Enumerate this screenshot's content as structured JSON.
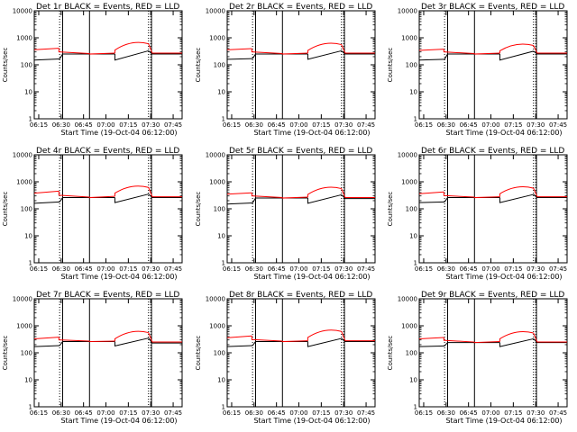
{
  "figure": {
    "series_colors": {
      "events": "#000000",
      "lld": "#ff0000"
    }
  },
  "chart_data": [
    {
      "type": "line",
      "title": "Det 1r  BLACK = Events, RED = LLD",
      "xlabel": "Start Time (19-Oct-04 06:12:00)",
      "ylabel": "Counts/sec",
      "yscale": "log",
      "ylim": [
        1,
        10000
      ],
      "xlim": [
        "06:12",
        "07:51"
      ],
      "x_ticks": [
        "06:15",
        "06:30",
        "06:45",
        "07:00",
        "07:15",
        "07:30",
        "07:45"
      ],
      "y_ticks": [
        "1",
        "10",
        "100",
        "1000",
        "10000"
      ],
      "solid_vlines": [
        "06:31",
        "06:49",
        "07:30:30"
      ],
      "dotted_vlines": [
        "06:29",
        "07:28:30",
        "07:30"
      ],
      "events": {
        "segments": [
          {
            "t0": "06:12",
            "t1": "06:29",
            "start": 150,
            "end": 165
          },
          {
            "t0": "06:31",
            "t1": "06:49",
            "start": 250,
            "end": 250
          },
          {
            "t0": "06:49",
            "t1": "07:06",
            "start": 250,
            "end": 250
          },
          {
            "t0": "07:06",
            "t1": "07:28:30",
            "start": 150,
            "end": 330
          },
          {
            "t0": "07:31",
            "t1": "07:51",
            "start": 250,
            "end": 250
          }
        ]
      },
      "lld": {
        "segments": [
          {
            "t0": "06:12",
            "t1": "06:28:30",
            "start": 360,
            "end": 410
          },
          {
            "t0": "06:28:30",
            "t1": "06:49",
            "start": 300,
            "end": 260
          },
          {
            "t0": "06:49",
            "t1": "07:06",
            "start": 250,
            "end": 270
          },
          {
            "t0": "07:06",
            "t1": "07:28:30",
            "start": 350,
            "end": 600,
            "peak": "07:17"
          },
          {
            "t0": "07:31",
            "t1": "07:51",
            "start": 270,
            "end": 270
          }
        ]
      }
    },
    {
      "type": "line",
      "title": "Det 2r  BLACK = Events, RED = LLD",
      "xlabel": "Start Time (19-Oct-04 06:12:00)",
      "ylabel": "Counts/sec",
      "yscale": "log",
      "ylim": [
        1,
        10000
      ],
      "xlim": [
        "06:12",
        "07:51"
      ],
      "x_ticks": [
        "06:15",
        "06:30",
        "06:45",
        "07:00",
        "07:15",
        "07:30",
        "07:45"
      ],
      "y_ticks": [
        "1",
        "10",
        "100",
        "1000",
        "10000"
      ],
      "solid_vlines": [
        "06:31",
        "06:49",
        "07:30:30"
      ],
      "dotted_vlines": [
        "06:29",
        "07:28:30",
        "07:30"
      ],
      "events": {
        "segments": [
          {
            "t0": "06:12",
            "t1": "06:29",
            "start": 160,
            "end": 170
          },
          {
            "t0": "06:31",
            "t1": "06:49",
            "start": 250,
            "end": 250
          },
          {
            "t0": "06:49",
            "t1": "07:06",
            "start": 250,
            "end": 250
          },
          {
            "t0": "07:06",
            "t1": "07:28:30",
            "start": 160,
            "end": 330
          },
          {
            "t0": "07:31",
            "t1": "07:51",
            "start": 250,
            "end": 250
          }
        ]
      },
      "lld": {
        "segments": [
          {
            "t0": "06:12",
            "t1": "06:28:30",
            "start": 360,
            "end": 400
          },
          {
            "t0": "06:28:30",
            "t1": "06:49",
            "start": 300,
            "end": 260
          },
          {
            "t0": "06:49",
            "t1": "07:06",
            "start": 250,
            "end": 270
          },
          {
            "t0": "07:06",
            "t1": "07:28:30",
            "start": 340,
            "end": 560,
            "peak": "07:17"
          },
          {
            "t0": "07:31",
            "t1": "07:51",
            "start": 270,
            "end": 270
          }
        ]
      }
    },
    {
      "type": "line",
      "title": "Det 3r  BLACK = Events, RED = LLD",
      "xlabel": "Start Time (19-Oct-04 06:12:00)",
      "ylabel": "Counts/sec",
      "yscale": "log",
      "ylim": [
        1,
        10000
      ],
      "xlim": [
        "06:12",
        "07:51"
      ],
      "x_ticks": [
        "06:15",
        "06:30",
        "06:45",
        "07:00",
        "07:15",
        "07:30",
        "07:45"
      ],
      "y_ticks": [
        "1",
        "10",
        "100",
        "1000",
        "10000"
      ],
      "solid_vlines": [
        "06:31",
        "06:49",
        "07:30:30"
      ],
      "dotted_vlines": [
        "06:29",
        "07:28:30",
        "07:30"
      ],
      "events": {
        "segments": [
          {
            "t0": "06:12",
            "t1": "06:29",
            "start": 150,
            "end": 160
          },
          {
            "t0": "06:31",
            "t1": "06:49",
            "start": 250,
            "end": 250
          },
          {
            "t0": "06:49",
            "t1": "07:06",
            "start": 250,
            "end": 250
          },
          {
            "t0": "07:06",
            "t1": "07:28:30",
            "start": 150,
            "end": 320
          },
          {
            "t0": "07:31",
            "t1": "07:51",
            "start": 250,
            "end": 250
          }
        ]
      },
      "lld": {
        "segments": [
          {
            "t0": "06:12",
            "t1": "06:28:30",
            "start": 340,
            "end": 380
          },
          {
            "t0": "06:28:30",
            "t1": "06:49",
            "start": 300,
            "end": 260
          },
          {
            "t0": "06:49",
            "t1": "07:06",
            "start": 250,
            "end": 270
          },
          {
            "t0": "07:06",
            "t1": "07:28:30",
            "start": 330,
            "end": 520,
            "peak": "07:17"
          },
          {
            "t0": "07:31",
            "t1": "07:51",
            "start": 270,
            "end": 270
          }
        ]
      }
    },
    {
      "type": "line",
      "title": "Det 4r  BLACK = Events, RED = LLD",
      "xlabel": "Start Time (19-Oct-04 06:12:00)",
      "ylabel": "Counts/sec",
      "yscale": "log",
      "ylim": [
        1,
        10000
      ],
      "xlim": [
        "06:12",
        "07:51"
      ],
      "x_ticks": [
        "06:15",
        "06:30",
        "06:45",
        "07:00",
        "07:15",
        "07:30",
        "07:45"
      ],
      "y_ticks": [
        "1",
        "10",
        "100",
        "1000",
        "10000"
      ],
      "solid_vlines": [
        "06:31",
        "06:49",
        "07:30:30"
      ],
      "dotted_vlines": [
        "06:29",
        "07:28:30",
        "07:30"
      ],
      "events": {
        "segments": [
          {
            "t0": "06:12",
            "t1": "06:29",
            "start": 160,
            "end": 180
          },
          {
            "t0": "06:31",
            "t1": "06:49",
            "start": 260,
            "end": 260
          },
          {
            "t0": "06:49",
            "t1": "07:06",
            "start": 260,
            "end": 260
          },
          {
            "t0": "07:06",
            "t1": "07:28:30",
            "start": 170,
            "end": 350
          },
          {
            "t0": "07:31",
            "t1": "07:51",
            "start": 260,
            "end": 260
          }
        ]
      },
      "lld": {
        "segments": [
          {
            "t0": "06:12",
            "t1": "06:28:30",
            "start": 380,
            "end": 450
          },
          {
            "t0": "06:28:30",
            "t1": "06:49",
            "start": 320,
            "end": 270
          },
          {
            "t0": "06:49",
            "t1": "07:06",
            "start": 260,
            "end": 290
          },
          {
            "t0": "07:06",
            "t1": "07:28:30",
            "start": 380,
            "end": 620,
            "peak": "07:17"
          },
          {
            "t0": "07:31",
            "t1": "07:51",
            "start": 280,
            "end": 280
          }
        ]
      }
    },
    {
      "type": "line",
      "title": "Det 5r  BLACK = Events, RED = LLD",
      "xlabel": "Start Time (19-Oct-04 06:12:00)",
      "ylabel": "Counts/sec",
      "yscale": "log",
      "ylim": [
        1,
        10000
      ],
      "xlim": [
        "06:12",
        "07:51"
      ],
      "x_ticks": [
        "06:15",
        "06:30",
        "06:45",
        "07:00",
        "07:15",
        "07:30",
        "07:45"
      ],
      "y_ticks": [
        "1",
        "10",
        "100",
        "1000",
        "10000"
      ],
      "solid_vlines": [
        "06:31",
        "06:49",
        "07:30:30"
      ],
      "dotted_vlines": [
        "06:29",
        "07:28:30",
        "07:30"
      ],
      "events": {
        "segments": [
          {
            "t0": "06:12",
            "t1": "06:29",
            "start": 150,
            "end": 165
          },
          {
            "t0": "06:31",
            "t1": "06:49",
            "start": 250,
            "end": 250
          },
          {
            "t0": "06:49",
            "t1": "07:06",
            "start": 250,
            "end": 250
          },
          {
            "t0": "07:06",
            "t1": "07:28:30",
            "start": 160,
            "end": 330
          },
          {
            "t0": "07:31",
            "t1": "07:51",
            "start": 240,
            "end": 240
          }
        ]
      },
      "lld": {
        "segments": [
          {
            "t0": "06:12",
            "t1": "06:28:30",
            "start": 350,
            "end": 390
          },
          {
            "t0": "06:28:30",
            "t1": "06:49",
            "start": 300,
            "end": 260
          },
          {
            "t0": "06:49",
            "t1": "07:06",
            "start": 250,
            "end": 270
          },
          {
            "t0": "07:06",
            "t1": "07:28:30",
            "start": 340,
            "end": 560,
            "peak": "07:17"
          },
          {
            "t0": "07:31",
            "t1": "07:51",
            "start": 260,
            "end": 260
          }
        ]
      }
    },
    {
      "type": "line",
      "title": "Det 6r  BLACK = Events, RED = LLD",
      "xlabel": "Start Time (19-Oct-04 06:12:00)",
      "ylabel": "Counts/sec",
      "yscale": "log",
      "ylim": [
        1,
        10000
      ],
      "xlim": [
        "06:12",
        "07:51"
      ],
      "x_ticks": [
        "06:15",
        "06:30",
        "06:45",
        "07:00",
        "07:15",
        "07:30",
        "07:45"
      ],
      "y_ticks": [
        "1",
        "10",
        "100",
        "1000",
        "10000"
      ],
      "solid_vlines": [
        "06:31",
        "06:49",
        "07:30:30"
      ],
      "dotted_vlines": [
        "06:29",
        "07:28:30",
        "07:30"
      ],
      "events": {
        "segments": [
          {
            "t0": "06:12",
            "t1": "06:29",
            "start": 170,
            "end": 180
          },
          {
            "t0": "06:31",
            "t1": "06:49",
            "start": 260,
            "end": 260
          },
          {
            "t0": "06:49",
            "t1": "07:06",
            "start": 260,
            "end": 260
          },
          {
            "t0": "07:06",
            "t1": "07:28:30",
            "start": 170,
            "end": 340
          },
          {
            "t0": "07:31",
            "t1": "07:51",
            "start": 260,
            "end": 260
          }
        ]
      },
      "lld": {
        "segments": [
          {
            "t0": "06:12",
            "t1": "06:28:30",
            "start": 360,
            "end": 420
          },
          {
            "t0": "06:28:30",
            "t1": "06:49",
            "start": 310,
            "end": 270
          },
          {
            "t0": "06:49",
            "t1": "07:06",
            "start": 260,
            "end": 280
          },
          {
            "t0": "07:06",
            "t1": "07:28:30",
            "start": 360,
            "end": 580,
            "peak": "07:17"
          },
          {
            "t0": "07:31",
            "t1": "07:51",
            "start": 280,
            "end": 280
          }
        ]
      }
    },
    {
      "type": "line",
      "title": "Det 7r  BLACK = Events, RED = LLD",
      "xlabel": "Start Time (19-Oct-04 06:12:00)",
      "ylabel": "Counts/sec",
      "yscale": "log",
      "ylim": [
        1,
        10000
      ],
      "xlim": [
        "06:12",
        "07:51"
      ],
      "x_ticks": [
        "06:15",
        "06:30",
        "06:45",
        "07:00",
        "07:15",
        "07:30",
        "07:45"
      ],
      "y_ticks": [
        "1",
        "10",
        "100",
        "1000",
        "10000"
      ],
      "solid_vlines": [
        "06:31",
        "06:49",
        "07:30:30"
      ],
      "dotted_vlines": [
        "06:29",
        "07:28:30",
        "07:30"
      ],
      "events": {
        "segments": [
          {
            "t0": "06:12",
            "t1": "06:29",
            "start": 170,
            "end": 185
          },
          {
            "t0": "06:31",
            "t1": "06:49",
            "start": 260,
            "end": 260
          },
          {
            "t0": "06:49",
            "t1": "07:06",
            "start": 260,
            "end": 260
          },
          {
            "t0": "07:06",
            "t1": "07:28:30",
            "start": 180,
            "end": 350
          },
          {
            "t0": "07:31",
            "t1": "07:51",
            "start": 230,
            "end": 230
          }
        ]
      },
      "lld": {
        "segments": [
          {
            "t0": "06:12",
            "t1": "06:28:30",
            "start": 330,
            "end": 380
          },
          {
            "t0": "06:28:30",
            "t1": "06:49",
            "start": 300,
            "end": 270
          },
          {
            "t0": "06:49",
            "t1": "07:06",
            "start": 260,
            "end": 270
          },
          {
            "t0": "07:06",
            "t1": "07:28:30",
            "start": 330,
            "end": 560,
            "peak": "07:17"
          },
          {
            "t0": "07:31",
            "t1": "07:51",
            "start": 250,
            "end": 250
          }
        ]
      }
    },
    {
      "type": "line",
      "title": "Det 8r  BLACK = Events, RED = LLD",
      "xlabel": "Start Time (19-Oct-04 06:12:00)",
      "ylabel": "Counts/sec",
      "yscale": "log",
      "ylim": [
        1,
        10000
      ],
      "xlim": [
        "06:12",
        "07:51"
      ],
      "x_ticks": [
        "06:15",
        "06:30",
        "06:45",
        "07:00",
        "07:15",
        "07:30",
        "07:45"
      ],
      "y_ticks": [
        "1",
        "10",
        "100",
        "1000",
        "10000"
      ],
      "solid_vlines": [
        "06:31",
        "06:49",
        "07:30:30"
      ],
      "dotted_vlines": [
        "06:29",
        "07:28:30",
        "07:30"
      ],
      "events": {
        "segments": [
          {
            "t0": "06:12",
            "t1": "06:29",
            "start": 170,
            "end": 185
          },
          {
            "t0": "06:31",
            "t1": "06:49",
            "start": 260,
            "end": 260
          },
          {
            "t0": "06:49",
            "t1": "07:06",
            "start": 260,
            "end": 260
          },
          {
            "t0": "07:06",
            "t1": "07:28:30",
            "start": 170,
            "end": 340
          },
          {
            "t0": "07:31",
            "t1": "07:51",
            "start": 260,
            "end": 260
          }
        ]
      },
      "lld": {
        "segments": [
          {
            "t0": "06:12",
            "t1": "06:28:30",
            "start": 360,
            "end": 420
          },
          {
            "t0": "06:28:30",
            "t1": "06:49",
            "start": 310,
            "end": 270
          },
          {
            "t0": "06:49",
            "t1": "07:06",
            "start": 260,
            "end": 280
          },
          {
            "t0": "07:06",
            "t1": "07:28:30",
            "start": 370,
            "end": 620,
            "peak": "07:17"
          },
          {
            "t0": "07:31",
            "t1": "07:51",
            "start": 280,
            "end": 280
          }
        ]
      }
    },
    {
      "type": "line",
      "title": "Det 9r  BLACK = Events, RED = LLD",
      "xlabel": "Start Time (19-Oct-04 06:12:00)",
      "ylabel": "Counts/sec",
      "yscale": "log",
      "ylim": [
        1,
        10000
      ],
      "xlim": [
        "06:12",
        "07:51"
      ],
      "x_ticks": [
        "06:15",
        "06:30",
        "06:45",
        "07:00",
        "07:15",
        "07:30",
        "07:45"
      ],
      "y_ticks": [
        "1",
        "10",
        "100",
        "1000",
        "10000"
      ],
      "solid_vlines": [
        "06:31",
        "06:49",
        "07:30:30"
      ],
      "dotted_vlines": [
        "06:29",
        "07:28:30",
        "07:30"
      ],
      "events": {
        "segments": [
          {
            "t0": "06:12",
            "t1": "06:29",
            "start": 170,
            "end": 180
          },
          {
            "t0": "06:31",
            "t1": "06:49",
            "start": 240,
            "end": 240
          },
          {
            "t0": "06:49",
            "t1": "07:06",
            "start": 240,
            "end": 240
          },
          {
            "t0": "07:06",
            "t1": "07:28:30",
            "start": 170,
            "end": 330
          },
          {
            "t0": "07:31",
            "t1": "07:51",
            "start": 240,
            "end": 240
          }
        ]
      },
      "lld": {
        "segments": [
          {
            "t0": "06:12",
            "t1": "06:28:30",
            "start": 330,
            "end": 370
          },
          {
            "t0": "06:28:30",
            "t1": "06:49",
            "start": 290,
            "end": 250
          },
          {
            "t0": "06:49",
            "t1": "07:06",
            "start": 240,
            "end": 260
          },
          {
            "t0": "07:06",
            "t1": "07:28:30",
            "start": 330,
            "end": 540,
            "peak": "07:17"
          },
          {
            "t0": "07:31",
            "t1": "07:51",
            "start": 250,
            "end": 250
          }
        ]
      }
    }
  ]
}
